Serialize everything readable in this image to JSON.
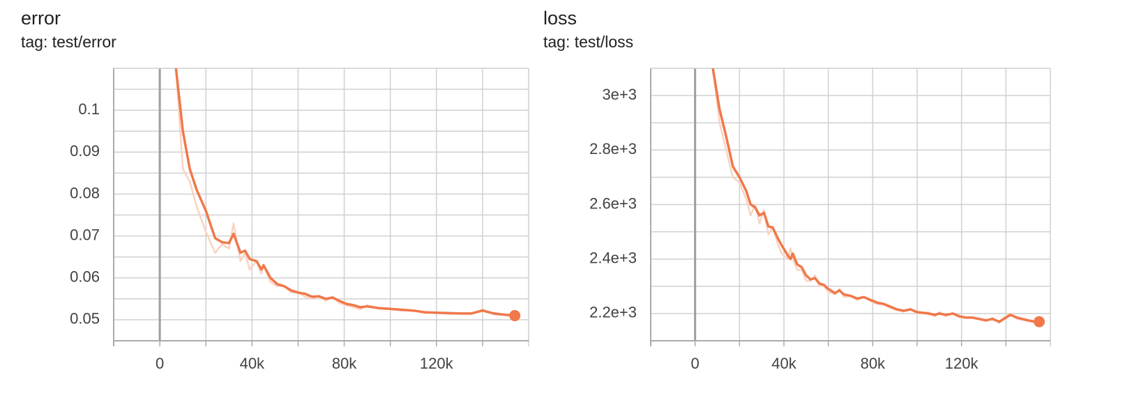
{
  "chart_data": [
    {
      "type": "line",
      "title": "error",
      "subtitle": "tag: test/error",
      "x": [
        7000,
        10000,
        13000,
        16000,
        20000,
        24000,
        27000,
        30000,
        32000,
        35000,
        37000,
        39000,
        42000,
        44000,
        45000,
        48000,
        51000,
        54000,
        57000,
        60000,
        63000,
        66000,
        69000,
        72000,
        75000,
        78000,
        81000,
        84000,
        87000,
        90000,
        95000,
        100000,
        105000,
        110000,
        115000,
        120000,
        125000,
        130000,
        135000,
        140000,
        145000,
        150000,
        154000
      ],
      "series": [
        {
          "color": "#f9d3c2",
          "values": [
            0.11,
            0.086,
            0.083,
            0.077,
            0.071,
            0.066,
            0.068,
            0.067,
            0.073,
            0.064,
            0.066,
            0.062,
            0.064,
            0.061,
            0.063,
            0.059,
            0.058,
            0.058,
            0.0565,
            0.0565,
            0.0555,
            0.055,
            0.0558,
            0.0545,
            0.0555,
            0.054,
            0.0535,
            0.053,
            0.0525,
            0.0535,
            0.0527,
            0.0525,
            0.0522,
            0.0523,
            0.0516,
            0.0518,
            0.0514,
            0.0516,
            0.0514,
            0.0525,
            0.0513,
            0.0511,
            0.0509
          ]
        },
        {
          "color": "#f0784a",
          "values": [
            0.11,
            0.095,
            0.086,
            0.081,
            0.076,
            0.0695,
            0.0685,
            0.0683,
            0.0705,
            0.066,
            0.0665,
            0.0645,
            0.064,
            0.062,
            0.063,
            0.06,
            0.0585,
            0.058,
            0.057,
            0.0565,
            0.0562,
            0.0555,
            0.0556,
            0.055,
            0.0553,
            0.0545,
            0.0538,
            0.0535,
            0.053,
            0.0532,
            0.0528,
            0.0526,
            0.0524,
            0.0522,
            0.0518,
            0.0517,
            0.0516,
            0.0515,
            0.0515,
            0.0522,
            0.0515,
            0.0512,
            0.051
          ]
        }
      ],
      "xlim": [
        -20000,
        160000
      ],
      "xticks": [
        0,
        {
          "value": 40000,
          "label": "40k"
        },
        {
          "value": 80000,
          "label": "80k"
        },
        {
          "value": 120000,
          "label": "120k"
        }
      ],
      "minor_xticks": [
        20000,
        60000,
        100000,
        140000
      ],
      "ylim": [
        0.045,
        0.11
      ],
      "yticks": [
        0.05,
        0.06,
        0.07,
        0.08,
        0.09,
        0.1
      ],
      "minor_yticks": [
        0.055,
        0.065,
        0.075,
        0.085,
        0.095,
        0.105
      ],
      "grid": true
    },
    {
      "type": "line",
      "title": "loss",
      "subtitle": "tag: test/loss",
      "x": [
        8000,
        11000,
        14000,
        17000,
        20000,
        23000,
        25000,
        27000,
        29000,
        31000,
        33000,
        35000,
        37000,
        39000,
        42000,
        43000,
        44000,
        46000,
        48000,
        50000,
        52000,
        54000,
        56000,
        58000,
        60000,
        63000,
        65000,
        67000,
        70000,
        73000,
        76000,
        79000,
        82000,
        85000,
        88000,
        91000,
        94000,
        97000,
        100000,
        105000,
        108000,
        110000,
        113000,
        116000,
        119000,
        122000,
        125000,
        128000,
        131000,
        134000,
        137000,
        139000,
        142000,
        145000,
        150000,
        153000,
        155000
      ],
      "series": [
        {
          "color": "#f9d3c2",
          "values": [
            3100,
            2900,
            2800,
            2700,
            2680,
            2620,
            2560,
            2600,
            2530,
            2580,
            2490,
            2520,
            2460,
            2420,
            2400,
            2440,
            2400,
            2360,
            2360,
            2320,
            2320,
            2340,
            2300,
            2300,
            2280,
            2270,
            2290,
            2260,
            2265,
            2250,
            2262,
            2245,
            2235,
            2232,
            2220,
            2212,
            2208,
            2218,
            2200,
            2205,
            2190,
            2205,
            2190,
            2202,
            2186,
            2184,
            2186,
            2178,
            2172,
            2185,
            2165,
            2185,
            2200,
            2180,
            2172,
            2168,
            2168
          ]
        },
        {
          "color": "#f0784a",
          "values": [
            3100,
            2950,
            2850,
            2740,
            2700,
            2650,
            2600,
            2590,
            2560,
            2570,
            2520,
            2515,
            2480,
            2450,
            2410,
            2400,
            2420,
            2380,
            2370,
            2340,
            2325,
            2330,
            2310,
            2305,
            2290,
            2275,
            2285,
            2270,
            2265,
            2255,
            2260,
            2250,
            2240,
            2235,
            2225,
            2215,
            2210,
            2215,
            2205,
            2200,
            2195,
            2200,
            2195,
            2200,
            2190,
            2185,
            2185,
            2180,
            2175,
            2180,
            2170,
            2180,
            2195,
            2185,
            2175,
            2170,
            2170
          ]
        }
      ],
      "xlim": [
        -20000,
        160000
      ],
      "xticks": [
        0,
        {
          "value": 40000,
          "label": "40k"
        },
        {
          "value": 80000,
          "label": "80k"
        },
        {
          "value": 120000,
          "label": "120k"
        }
      ],
      "minor_xticks": [
        20000,
        60000,
        100000,
        140000
      ],
      "ylim": [
        2100,
        3100
      ],
      "yticks": [
        {
          "value": 2200,
          "label": "2.2e+3"
        },
        {
          "value": 2400,
          "label": "2.4e+3"
        },
        {
          "value": 2600,
          "label": "2.6e+3"
        },
        {
          "value": 2800,
          "label": "2.8e+3"
        },
        {
          "value": 3000,
          "label": "3e+3"
        }
      ],
      "minor_yticks": [
        2300,
        2500,
        2700,
        2900
      ],
      "grid": true
    }
  ]
}
